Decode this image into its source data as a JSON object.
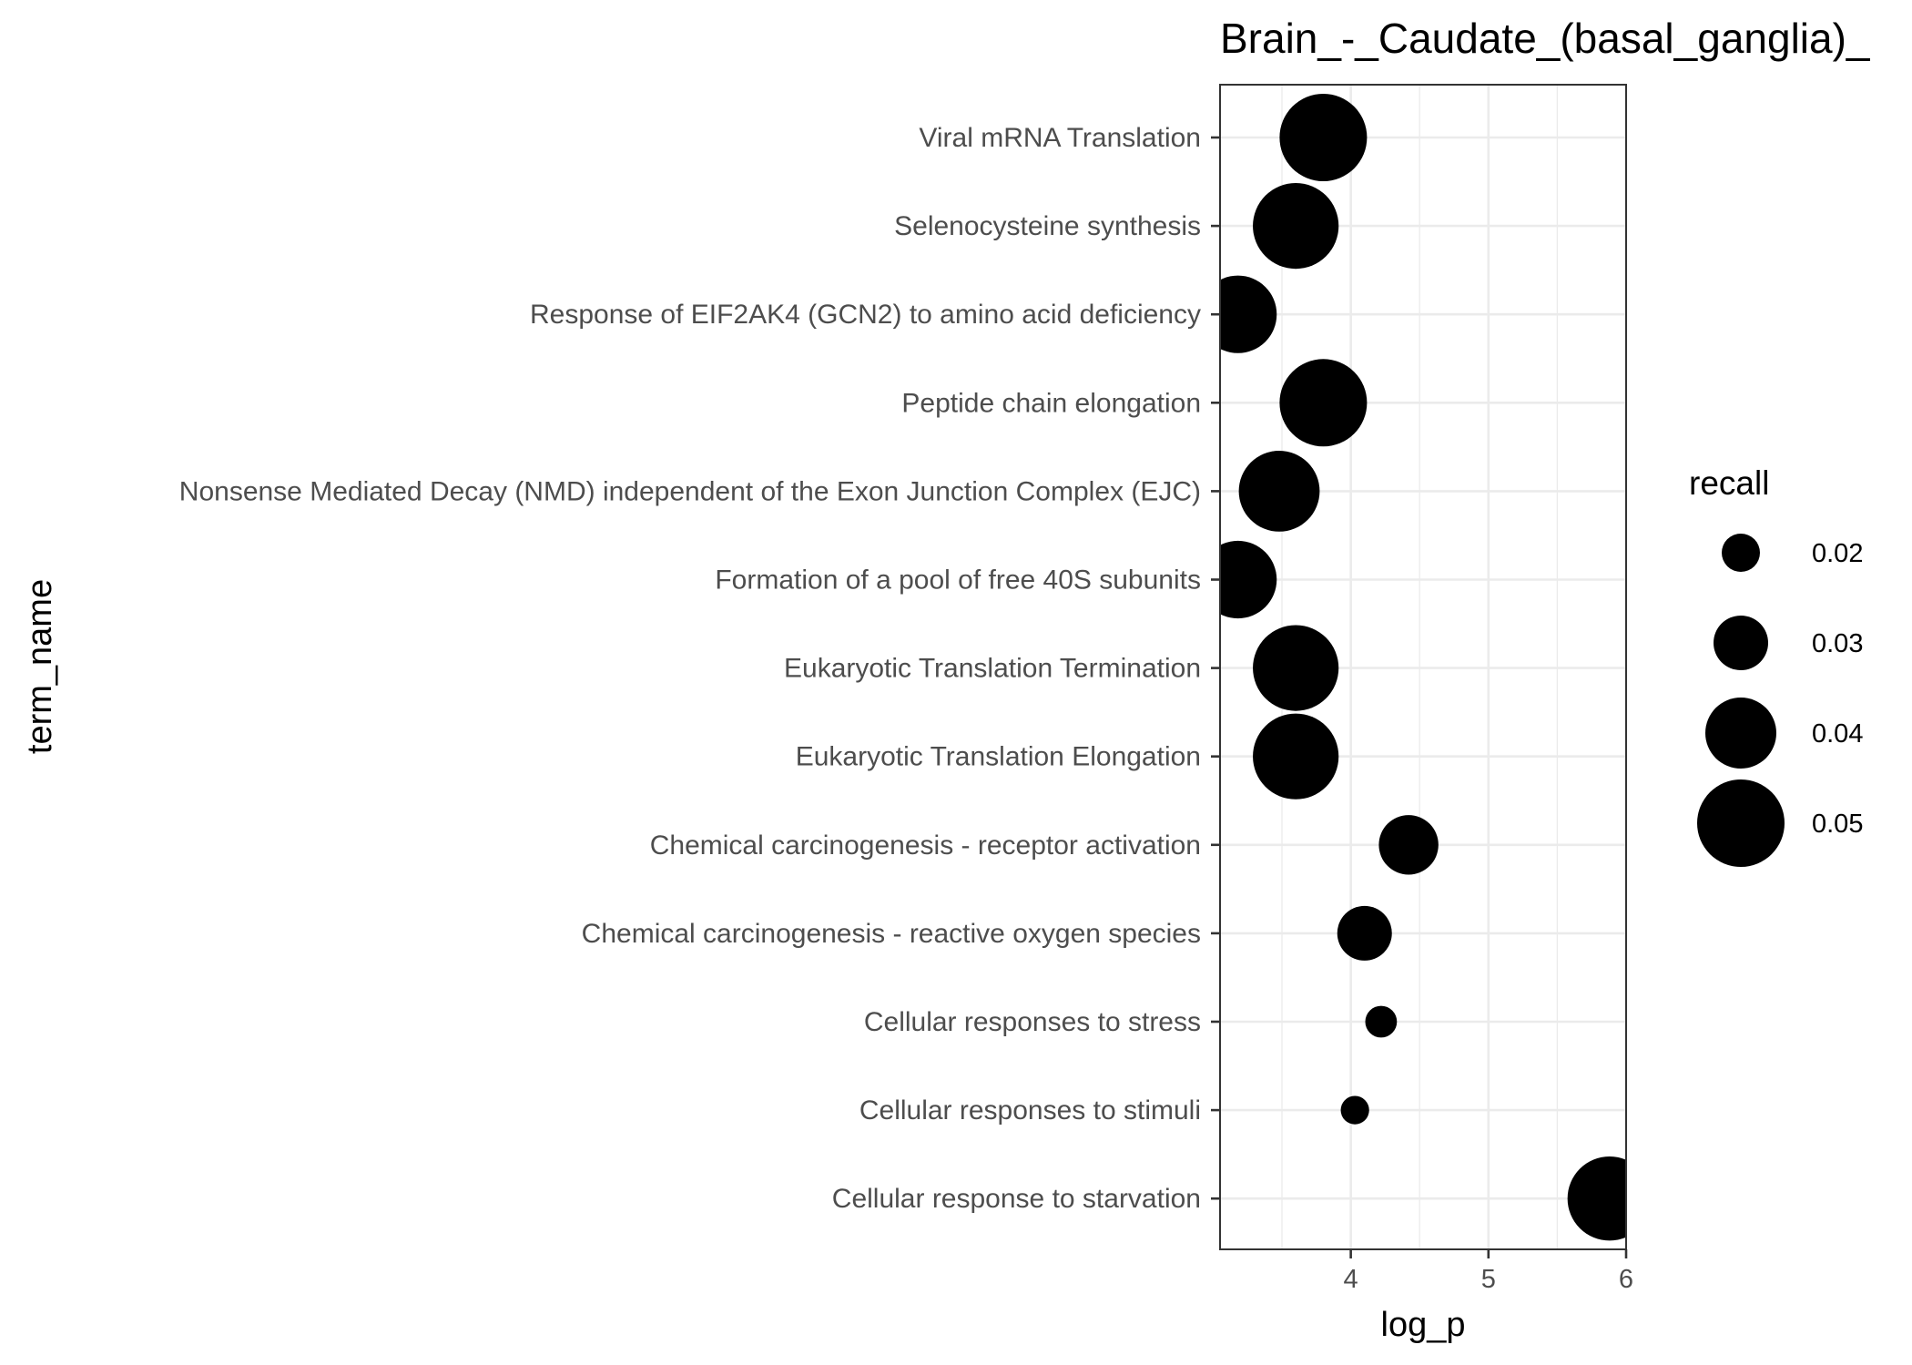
{
  "chart_data": {
    "type": "scatter",
    "title": "Brain_-_Caudate_(basal_ganglia)_",
    "xlabel": "log_p",
    "ylabel": "term_name",
    "xlim": [
      3.05,
      6.0
    ],
    "x_ticks": [
      4,
      5,
      6
    ],
    "x_minor_ticks": [
      3.5,
      4.5,
      5.5
    ],
    "grid": true,
    "legend": {
      "title": "recall",
      "position": "right",
      "entries": [
        {
          "label": "0.02",
          "value": 0.02
        },
        {
          "label": "0.03",
          "value": 0.03
        },
        {
          "label": "0.04",
          "value": 0.04
        },
        {
          "label": "0.05",
          "value": 0.05
        }
      ]
    },
    "points": [
      {
        "term_name": "Viral mRNA Translation",
        "log_p": 3.8,
        "recall": 0.05
      },
      {
        "term_name": "Selenocysteine synthesis",
        "log_p": 3.6,
        "recall": 0.049
      },
      {
        "term_name": "Response of EIF2AK4 (GCN2) to amino acid deficiency",
        "log_p": 3.18,
        "recall": 0.044
      },
      {
        "term_name": "Peptide chain elongation",
        "log_p": 3.8,
        "recall": 0.05
      },
      {
        "term_name": "Nonsense Mediated Decay (NMD) independent of the Exon Junction Complex (EJC)",
        "log_p": 3.48,
        "recall": 0.046
      },
      {
        "term_name": "Formation of a pool of free 40S subunits",
        "log_p": 3.18,
        "recall": 0.044
      },
      {
        "term_name": "Eukaryotic Translation Termination",
        "log_p": 3.6,
        "recall": 0.049
      },
      {
        "term_name": "Eukaryotic Translation Elongation",
        "log_p": 3.6,
        "recall": 0.049
      },
      {
        "term_name": "Chemical carcinogenesis - receptor activation",
        "log_p": 4.42,
        "recall": 0.033
      },
      {
        "term_name": "Chemical carcinogenesis - reactive oxygen species",
        "log_p": 4.1,
        "recall": 0.03
      },
      {
        "term_name": "Cellular responses to stress",
        "log_p": 4.22,
        "recall": 0.016
      },
      {
        "term_name": "Cellular responses to stimuli",
        "log_p": 4.03,
        "recall": 0.014
      },
      {
        "term_name": "Cellular response to starvation",
        "log_p": 5.88,
        "recall": 0.048
      }
    ]
  }
}
